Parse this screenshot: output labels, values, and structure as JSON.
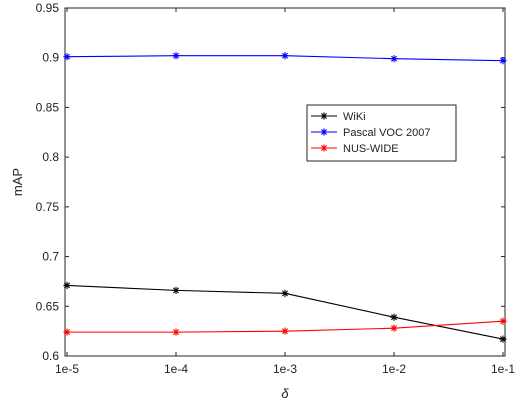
{
  "chart_data": {
    "type": "line",
    "title": "",
    "xlabel": "δ",
    "ylabel": "mAP",
    "categories": [
      "1e-5",
      "1e-4",
      "1e-3",
      "1e-2",
      "1e-1"
    ],
    "yticks": [
      "0.6",
      "0.65",
      "0.7",
      "0.75",
      "0.8",
      "0.85",
      "0.9",
      "0.95"
    ],
    "ylim": [
      0.6,
      0.95
    ],
    "grid": false,
    "legend_position": "right-upper",
    "series": [
      {
        "name": "WiKi",
        "color": "#000000",
        "marker": "asterisk",
        "values": [
          0.671,
          0.666,
          0.663,
          0.639,
          0.617
        ]
      },
      {
        "name": "Pascal VOC 2007",
        "color": "#0000ff",
        "marker": "asterisk",
        "values": [
          0.901,
          0.902,
          0.902,
          0.899,
          0.897
        ]
      },
      {
        "name": "NUS-WIDE",
        "color": "#ff0000",
        "marker": "asterisk",
        "values": [
          0.624,
          0.624,
          0.625,
          0.628,
          0.635
        ]
      }
    ]
  }
}
